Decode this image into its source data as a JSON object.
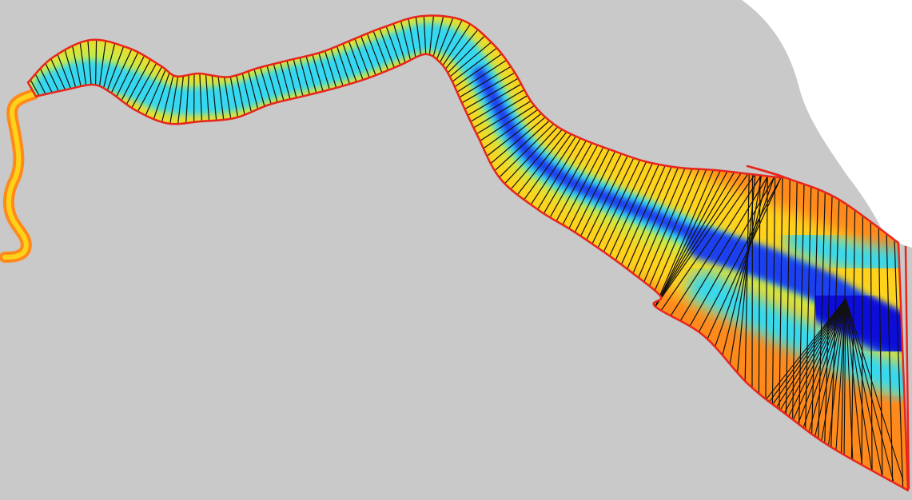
{
  "map": {
    "land_color": "#c9c9c9",
    "background_color": "#ffffff",
    "boundary_color": "#e8251c",
    "transect_color": "#111111",
    "depth_colors": {
      "shallow": "#ffd21a",
      "bank": "#ff8a1c",
      "mid": "#c8ec4a",
      "medium": "#35d8f0",
      "deep": "#1a3ff0",
      "deepest": "#0a10d8"
    }
  }
}
